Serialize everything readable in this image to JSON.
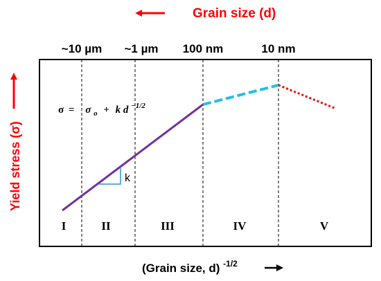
{
  "top_axis": {
    "title": "Grain size (d)",
    "arrow_direction": "left",
    "color": "#ff0000"
  },
  "grain_size_labels": [
    "~10 µm",
    "~1 µm",
    "100 nm",
    "10 nm"
  ],
  "y_axis": {
    "title": "Yield stress (σ)",
    "arrow_direction": "up",
    "color": "#ff0000"
  },
  "x_axis": {
    "title": "(Grain size, d)",
    "exponent": "-1/2",
    "arrow_direction": "right"
  },
  "regions": [
    "I",
    "II",
    "III",
    "IV",
    "V"
  ],
  "equation": {
    "lhs": "σ",
    "equals": "=",
    "sigma": "σ",
    "sigma_sub": "o",
    "plus": "+",
    "k": "k",
    "d": "d",
    "exponent": "−1/2"
  },
  "slope_label": "k",
  "curve": {
    "hall_petch_color": "#7030a0",
    "transition_color": "#1ec0e6",
    "inverse_color": "#ff0000",
    "triangle_color": "#3a8ec8"
  }
}
